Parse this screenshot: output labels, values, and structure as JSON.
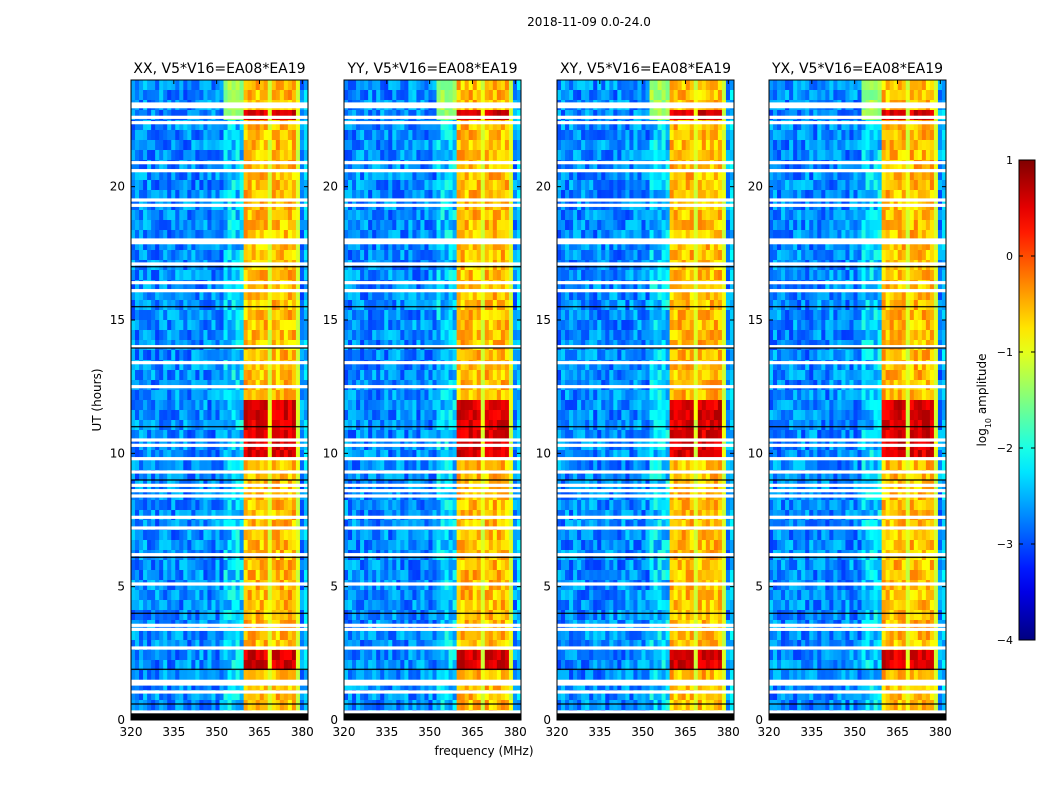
{
  "figure_title": "2018-11-09 0.0-24.0",
  "colors": {
    "colormap": "jet",
    "background": "#ffffff",
    "axis": "#000000",
    "flag": "#ffffff"
  },
  "chart_data": [
    {
      "type": "heatmap",
      "title": "XX, V5*V16=EA08*EA19",
      "xlabel": "",
      "ylabel": "UT (hours)",
      "xlim": [
        320,
        382
      ],
      "ylim": [
        0,
        24
      ],
      "xticks": [
        320,
        335,
        350,
        365,
        380
      ],
      "yticks": [
        0,
        5,
        10,
        15,
        20
      ],
      "rfi_band_mhz": [
        359.5,
        379.0
      ],
      "weak_rfi_edge_mhz": [
        353,
        359.5
      ],
      "value_range_log10": [
        -4,
        1
      ]
    },
    {
      "type": "heatmap",
      "title": "YY, V5*V16=EA08*EA19",
      "xlabel": "frequency (MHz)",
      "ylabel": "",
      "xlim": [
        320,
        382
      ],
      "ylim": [
        0,
        24
      ],
      "xticks": [
        320,
        335,
        350,
        365,
        380
      ],
      "yticks": [
        0,
        5,
        10,
        15,
        20
      ],
      "rfi_band_mhz": [
        359.5,
        379.0
      ],
      "weak_rfi_edge_mhz": [
        353,
        359.5
      ],
      "value_range_log10": [
        -4,
        1
      ]
    },
    {
      "type": "heatmap",
      "title": "XY, V5*V16=EA08*EA19",
      "xlabel": "",
      "ylabel": "",
      "xlim": [
        320,
        382
      ],
      "ylim": [
        0,
        24
      ],
      "xticks": [
        320,
        335,
        350,
        365,
        380
      ],
      "yticks": [
        0,
        5,
        10,
        15,
        20
      ],
      "rfi_band_mhz": [
        359.5,
        379.0
      ],
      "weak_rfi_edge_mhz": [
        353,
        359.5
      ],
      "value_range_log10": [
        -4,
        1
      ]
    },
    {
      "type": "heatmap",
      "title": "YX, V5*V16=EA08*EA19",
      "xlabel": "",
      "ylabel": "",
      "xlim": [
        320,
        382
      ],
      "ylim": [
        0,
        24
      ],
      "xticks": [
        320,
        335,
        350,
        365,
        380
      ],
      "yticks": [
        0,
        5,
        10,
        15,
        20
      ],
      "rfi_band_mhz": [
        359.5,
        379.0
      ],
      "weak_rfi_edge_mhz": [
        353,
        359.5
      ],
      "value_range_log10": [
        -4,
        1
      ]
    }
  ],
  "flagged_rows_ut": [
    0.15,
    0.3,
    1.05,
    1.35,
    1.45,
    2.7,
    3.4,
    3.55,
    5.1,
    6.2,
    7.2,
    7.6,
    8.4,
    8.6,
    8.8,
    9.3,
    9.8,
    10.3,
    10.5,
    12.5,
    13.4,
    14.0,
    16.1,
    16.4,
    17.1,
    17.9,
    18.0,
    19.3,
    19.5,
    20.6,
    20.9,
    22.4,
    22.6,
    23.0,
    23.1
  ],
  "dark_rows_ut": [
    0.6,
    1.9,
    4.0,
    6.1,
    9.0,
    11.0,
    13.95,
    15.5,
    17.0
  ],
  "colorbar": {
    "label_base": "log",
    "label_sub": "10",
    "label_rest": " amplitude",
    "min": -4,
    "max": 1,
    "ticks": [
      1,
      0,
      -1,
      -2,
      -3,
      -4
    ],
    "tick_labels": [
      "1",
      "0",
      "−1",
      "−2",
      "−3",
      "−4"
    ]
  }
}
